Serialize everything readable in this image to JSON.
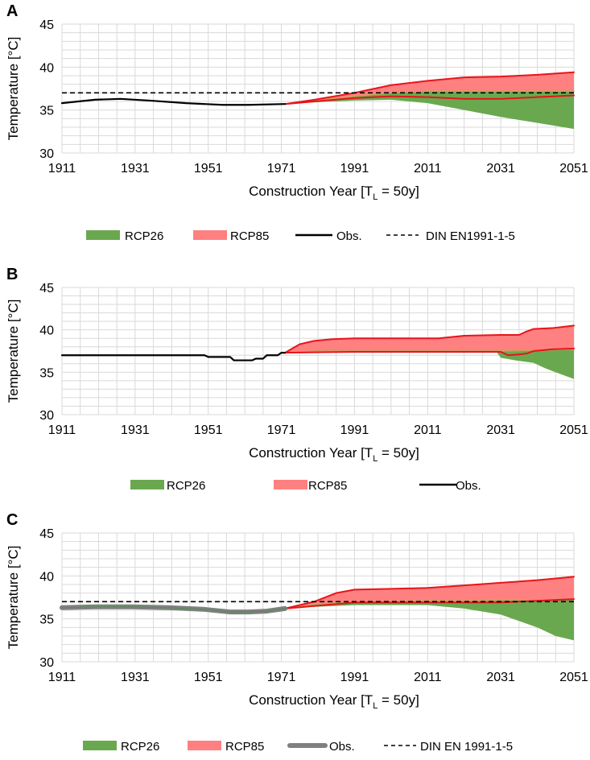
{
  "figure": {
    "type": "multi-panel climate temperature chart"
  },
  "colors": {
    "rcp26": "#6aa84f",
    "rcp85": "#ff8080",
    "rcp85_line": "#e8141b",
    "obs": "#000000",
    "obs_gray": "#808080",
    "din": "#000000",
    "grid": "#d9d9d9"
  },
  "chart_data": [
    {
      "id": "A",
      "type": "area",
      "panel_label": "A",
      "xlabel": "Construction Year [T",
      "xlabel_sub": "L",
      "xlabel_tail": " = 50y]",
      "ylabel": "Temperature [°C]",
      "xlim": [
        1911,
        2051
      ],
      "ylim": [
        30,
        45
      ],
      "xticks": [
        "1911",
        "1931",
        "1951",
        "1971",
        "1991",
        "2011",
        "2031",
        "2051"
      ],
      "yticks": [
        "30",
        "35",
        "40",
        "45"
      ],
      "grid": true,
      "obs_style": "black",
      "series": [
        {
          "name": "Obs.",
          "x": [
            1911,
            1920,
            1927,
            1935,
            1945,
            1955,
            1962,
            1972
          ],
          "y": [
            35.8,
            36.2,
            36.3,
            36.1,
            35.8,
            35.6,
            35.6,
            35.7
          ]
        },
        {
          "name": "RCP26_upper",
          "x": [
            1972,
            1980,
            1991,
            2001,
            2011,
            2021,
            2031,
            2041,
            2051
          ],
          "y": [
            35.7,
            36.1,
            36.6,
            37.0,
            37.2,
            37.2,
            37.2,
            37.2,
            37.2
          ]
        },
        {
          "name": "RCP26_lower",
          "x": [
            1972,
            1980,
            1991,
            2001,
            2011,
            2021,
            2031,
            2041,
            2051
          ],
          "y": [
            35.7,
            35.9,
            36.1,
            36.2,
            35.8,
            35.0,
            34.2,
            33.5,
            32.8
          ]
        },
        {
          "name": "RCP85_upper",
          "x": [
            1972,
            1980,
            1991,
            2001,
            2011,
            2021,
            2031,
            2041,
            2051
          ],
          "y": [
            35.7,
            36.2,
            37.0,
            37.9,
            38.4,
            38.8,
            38.9,
            39.1,
            39.4
          ]
        },
        {
          "name": "RCP85_lower",
          "x": [
            1972,
            1980,
            1991,
            2001,
            2011,
            2021,
            2031,
            2041,
            2051
          ],
          "y": [
            35.7,
            36.0,
            36.4,
            36.6,
            36.5,
            36.3,
            36.3,
            36.5,
            36.7
          ]
        }
      ],
      "din_value": 37.0,
      "legend": [
        {
          "key": "rcp26",
          "label": "RCP26"
        },
        {
          "key": "rcp85",
          "label": "RCP85"
        },
        {
          "key": "obs",
          "label": "Obs."
        },
        {
          "key": "din",
          "label": "DIN EN1991-1-5"
        }
      ]
    },
    {
      "id": "B",
      "type": "area",
      "panel_label": "B",
      "xlabel": "Construction Year [T",
      "xlabel_sub": "L",
      "xlabel_tail": " = 50y]",
      "ylabel": "Temperature [°C]",
      "xlim": [
        1911,
        2051
      ],
      "ylim": [
        30,
        45
      ],
      "xticks": [
        "1911",
        "1931",
        "1951",
        "1971",
        "1991",
        "2011",
        "2031",
        "2051"
      ],
      "yticks": [
        "30",
        "35",
        "40",
        "45"
      ],
      "grid": true,
      "obs_style": "black",
      "series": [
        {
          "name": "Obs.",
          "x": [
            1911,
            1950,
            1951,
            1957,
            1958,
            1963,
            1964,
            1966,
            1967,
            1970,
            1971,
            1972
          ],
          "y": [
            37.0,
            37.0,
            36.8,
            36.8,
            36.4,
            36.4,
            36.6,
            36.6,
            37.0,
            37.0,
            37.3,
            37.3
          ]
        },
        {
          "name": "RCP26_upper",
          "x": [
            1972,
            1980,
            1991,
            2011,
            2021,
            2031,
            2041,
            2051
          ],
          "y": [
            37.3,
            37.5,
            37.5,
            37.5,
            37.5,
            37.5,
            37.6,
            37.7
          ]
        },
        {
          "name": "RCP26_lower",
          "x": [
            1972,
            1980,
            1991,
            2011,
            2021,
            2030,
            2031,
            2035,
            2040,
            2043,
            2046,
            2051
          ],
          "y": [
            37.3,
            37.3,
            37.3,
            37.3,
            37.3,
            37.3,
            36.7,
            36.4,
            36.1,
            35.5,
            35.0,
            34.2
          ]
        },
        {
          "name": "RCP85_upper",
          "x": [
            1972,
            1976,
            1980,
            1985,
            1991,
            2011,
            2014,
            2021,
            2031,
            2036,
            2038,
            2040,
            2045,
            2049,
            2051
          ],
          "y": [
            37.3,
            38.3,
            38.7,
            38.9,
            39.0,
            39.0,
            39.0,
            39.3,
            39.4,
            39.4,
            39.8,
            40.1,
            40.2,
            40.4,
            40.5
          ]
        },
        {
          "name": "RCP85_lower",
          "x": [
            1972,
            1991,
            2011,
            2021,
            2031,
            2033,
            2036,
            2038,
            2040,
            2045,
            2051
          ],
          "y": [
            37.3,
            37.4,
            37.4,
            37.4,
            37.4,
            37.0,
            37.1,
            37.2,
            37.5,
            37.7,
            37.8
          ]
        }
      ],
      "din_value": null,
      "legend": [
        {
          "key": "rcp26",
          "label": "RCP26"
        },
        {
          "key": "rcp85",
          "label": "RCP85"
        },
        {
          "key": "obs",
          "label": "Obs."
        }
      ]
    },
    {
      "id": "C",
      "type": "area",
      "panel_label": "C",
      "xlabel": "Construction Year [T",
      "xlabel_sub": "L",
      "xlabel_tail": " = 50y]",
      "ylabel": "Temperature [°C]",
      "xlim": [
        1911,
        2051
      ],
      "ylim": [
        30,
        45
      ],
      "xticks": [
        "1911",
        "1931",
        "1951",
        "1971",
        "1991",
        "2011",
        "2031",
        "2051"
      ],
      "yticks": [
        "30",
        "35",
        "40",
        "45"
      ],
      "grid": true,
      "obs_style": "gray",
      "series": [
        {
          "name": "Obs.",
          "x": [
            1911,
            1920,
            1930,
            1940,
            1950,
            1957,
            1962,
            1967,
            1972
          ],
          "y": [
            36.3,
            36.4,
            36.4,
            36.3,
            36.1,
            35.8,
            35.8,
            35.9,
            36.2
          ]
        },
        {
          "name": "RCP26_upper",
          "x": [
            1972,
            1980,
            1991,
            2011,
            2021,
            2031,
            2041,
            2051
          ],
          "y": [
            36.2,
            36.7,
            37.0,
            37.1,
            37.1,
            37.2,
            37.2,
            37.3
          ]
        },
        {
          "name": "RCP26_lower",
          "x": [
            1972,
            1980,
            1991,
            2011,
            2021,
            2031,
            2041,
            2046,
            2051
          ],
          "y": [
            36.2,
            36.4,
            36.6,
            36.6,
            36.2,
            35.5,
            34.0,
            33.0,
            32.5
          ]
        },
        {
          "name": "RCP85_upper",
          "x": [
            1972,
            1980,
            1986,
            1991,
            2001,
            2011,
            2021,
            2031,
            2041,
            2051
          ],
          "y": [
            36.2,
            37.0,
            38.0,
            38.4,
            38.5,
            38.6,
            38.9,
            39.2,
            39.5,
            39.9
          ]
        },
        {
          "name": "RCP85_lower",
          "x": [
            1972,
            1991,
            2011,
            2031,
            2041,
            2051
          ],
          "y": [
            36.2,
            36.9,
            36.9,
            36.9,
            37.1,
            37.3
          ]
        }
      ],
      "din_value": 37.0,
      "legend": [
        {
          "key": "rcp26",
          "label": "RCP26"
        },
        {
          "key": "rcp85",
          "label": "RCP85"
        },
        {
          "key": "obs_gray",
          "label": "Obs."
        },
        {
          "key": "din",
          "label": "DIN EN 1991-1-5"
        }
      ]
    }
  ]
}
